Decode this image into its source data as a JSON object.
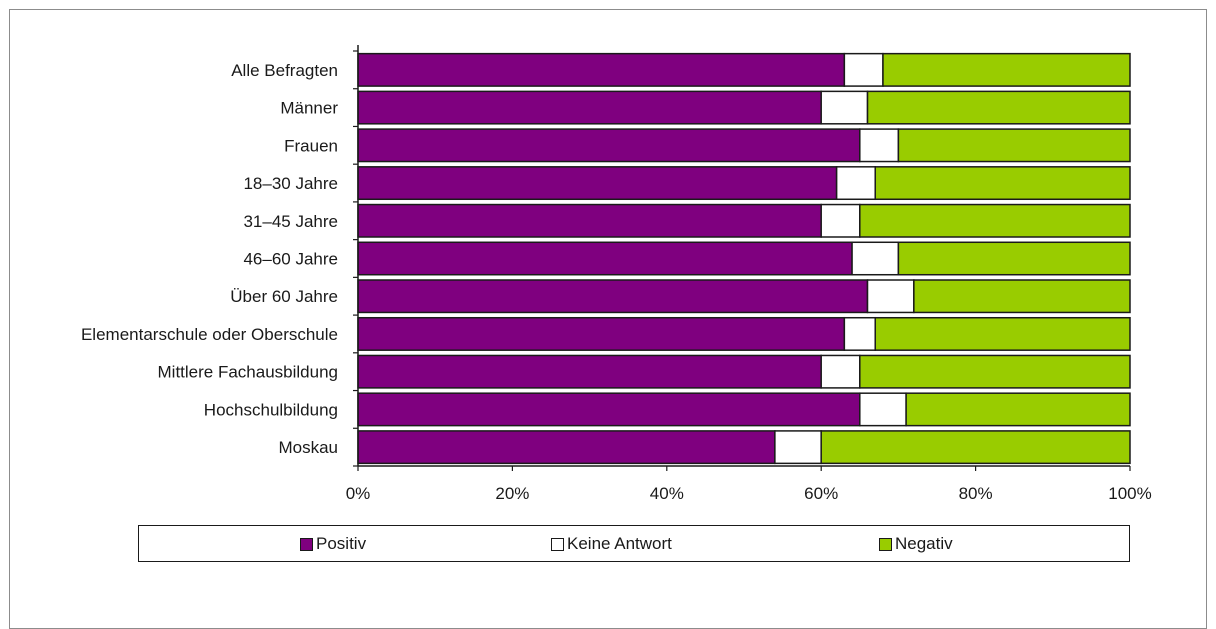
{
  "chart_data": {
    "type": "bar",
    "orientation": "horizontal",
    "stacked": true,
    "percent": true,
    "categories": [
      "Alle Befragten",
      "Männer",
      "Frauen",
      "18–30 Jahre",
      "31–45 Jahre",
      "46–60 Jahre",
      "Über 60 Jahre",
      "Elementarschule oder Oberschule",
      "Mittlere Fachausbildung",
      "Hochschulbildung",
      "Moskau"
    ],
    "series": [
      {
        "name": "Positiv",
        "color": "#7f007f",
        "values": [
          63,
          60,
          65,
          62,
          60,
          64,
          66,
          63,
          60,
          65,
          54
        ]
      },
      {
        "name": "Keine Antwort",
        "color": "#ffffff",
        "values": [
          5,
          6,
          5,
          5,
          5,
          6,
          6,
          4,
          5,
          6,
          6
        ]
      },
      {
        "name": "Negativ",
        "color": "#99cc00",
        "values": [
          32,
          34,
          30,
          33,
          35,
          30,
          28,
          33,
          35,
          29,
          40
        ]
      }
    ],
    "xlim": [
      0,
      100
    ],
    "xticks": [
      "0%",
      "20%",
      "40%",
      "60%",
      "80%",
      "100%"
    ],
    "title": "",
    "xlabel": "",
    "ylabel": "",
    "grid": false,
    "legend_position": "bottom"
  }
}
